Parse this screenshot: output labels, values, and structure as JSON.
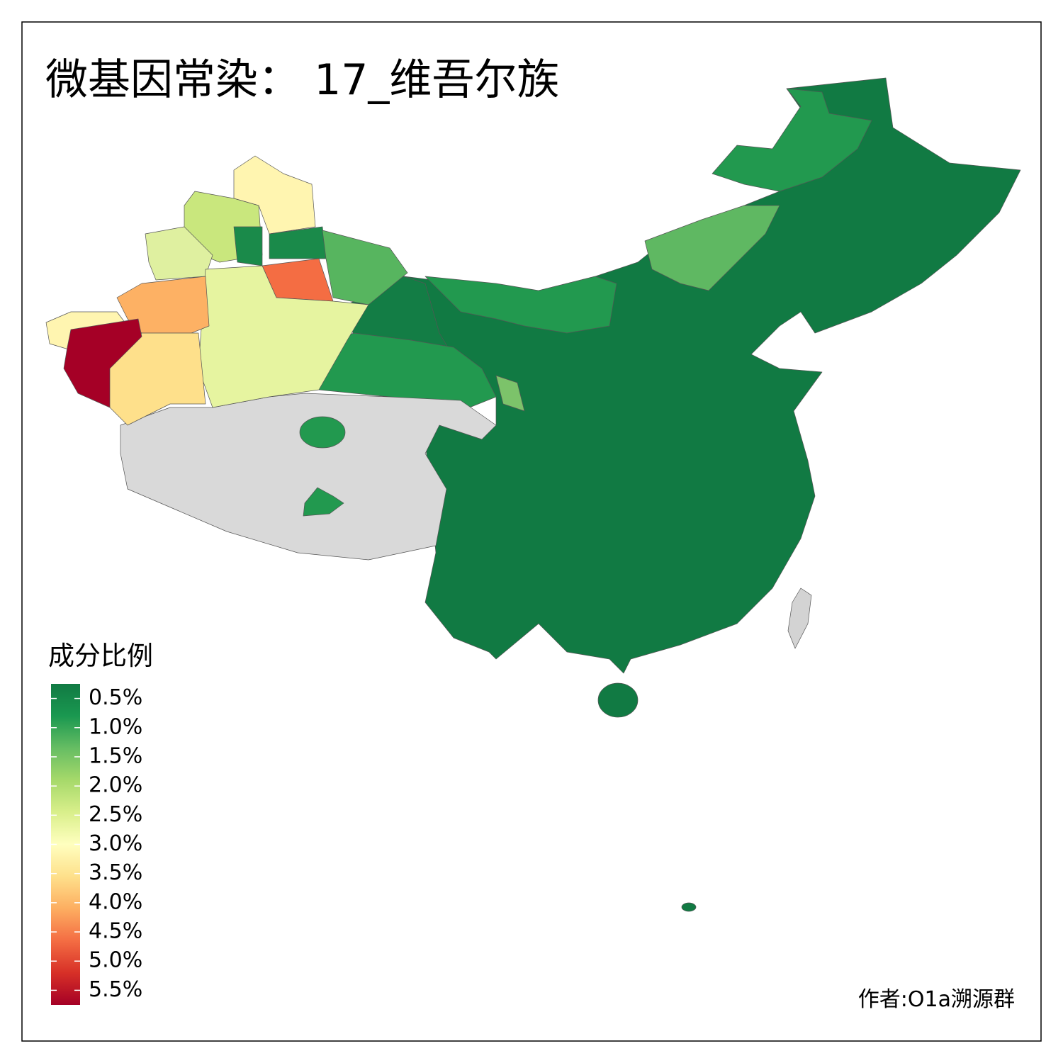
{
  "title": "微基因常染： 17_维吾尔族",
  "legend": {
    "title": "成分比例",
    "colors": [
      "#117a43",
      "#1a9850",
      "#66bd63",
      "#a6d96a",
      "#d9ef8b",
      "#ffffbf",
      "#fee08b",
      "#fdae61",
      "#f46d43",
      "#d73027",
      "#a50026"
    ],
    "ticks": [
      {
        "value": 0.5,
        "label": "0.5%"
      },
      {
        "value": 1.0,
        "label": "1.0%"
      },
      {
        "value": 1.5,
        "label": "1.5%"
      },
      {
        "value": 2.0,
        "label": "2.0%"
      },
      {
        "value": 2.5,
        "label": "2.5%"
      },
      {
        "value": 3.0,
        "label": "3.0%"
      },
      {
        "value": 3.5,
        "label": "3.5%"
      },
      {
        "value": 4.0,
        "label": "4.0%"
      },
      {
        "value": 4.5,
        "label": "4.5%"
      },
      {
        "value": 5.0,
        "label": "5.0%"
      },
      {
        "value": 5.5,
        "label": "5.5%"
      }
    ]
  },
  "credit": "作者:O1a溯源群"
}
